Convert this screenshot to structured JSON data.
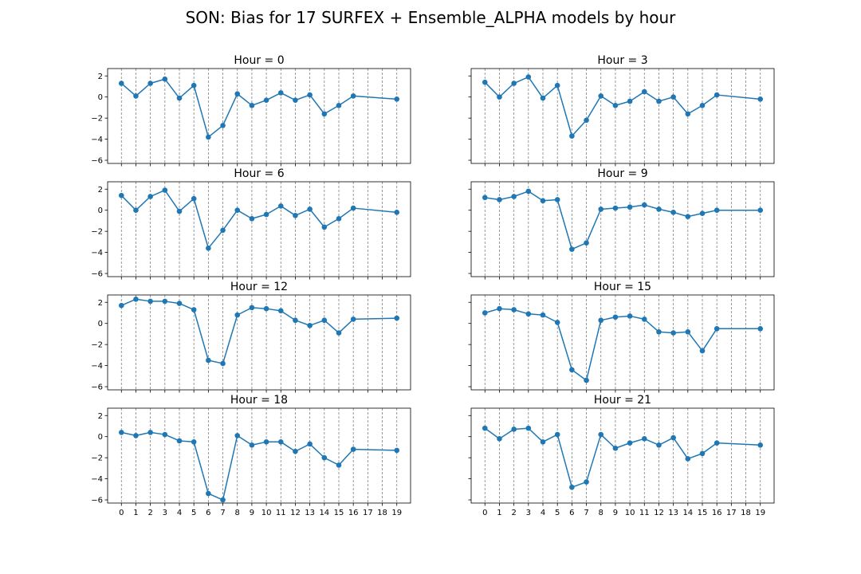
{
  "figure": {
    "title": "SON: Bias for 17 SURFEX + Ensemble_ALPHA models by hour"
  },
  "style": {
    "line_color": "#1f77b4",
    "grid_color": "#808080",
    "axis_color": "#000000"
  },
  "chart_data": [
    {
      "type": "line",
      "title": "Hour = 0",
      "xlabel": "",
      "ylabel": "",
      "x": [
        0,
        1,
        2,
        3,
        4,
        5,
        6,
        7,
        8,
        9,
        10,
        11,
        12,
        13,
        14,
        15,
        16,
        19
      ],
      "series": [
        {
          "values": [
            1.3,
            0.1,
            1.3,
            1.7,
            -0.1,
            1.1,
            -3.8,
            -2.7,
            0.3,
            -0.8,
            -0.3,
            0.4,
            -0.3,
            0.2,
            -1.6,
            -0.8,
            0.1,
            -0.2
          ]
        }
      ],
      "xticks": [
        0,
        1,
        2,
        3,
        4,
        5,
        6,
        7,
        8,
        9,
        10,
        11,
        12,
        13,
        14,
        15,
        16,
        17,
        18,
        19
      ],
      "yticks": [
        -6,
        -4,
        -2,
        0,
        2
      ],
      "ylim": [
        -6.3,
        2.7
      ],
      "xlim": [
        -0.95,
        19.95
      ],
      "grid": "vertical dashed"
    },
    {
      "type": "line",
      "title": "Hour = 3",
      "xlabel": "",
      "ylabel": "",
      "x": [
        0,
        1,
        2,
        3,
        4,
        5,
        6,
        7,
        8,
        9,
        10,
        11,
        12,
        13,
        14,
        15,
        16,
        19
      ],
      "series": [
        {
          "values": [
            1.4,
            0.0,
            1.3,
            1.9,
            -0.1,
            1.1,
            -3.7,
            -2.2,
            0.1,
            -0.8,
            -0.4,
            0.5,
            -0.4,
            0.0,
            -1.6,
            -0.8,
            0.2,
            -0.2
          ]
        }
      ],
      "xticks": [
        0,
        1,
        2,
        3,
        4,
        5,
        6,
        7,
        8,
        9,
        10,
        11,
        12,
        13,
        14,
        15,
        16,
        17,
        18,
        19
      ],
      "yticks": [
        -6,
        -4,
        -2,
        0,
        2
      ],
      "ylim": [
        -6.3,
        2.7
      ],
      "xlim": [
        -0.95,
        19.95
      ],
      "grid": "vertical dashed"
    },
    {
      "type": "line",
      "title": "Hour = 6",
      "xlabel": "",
      "ylabel": "",
      "x": [
        0,
        1,
        2,
        3,
        4,
        5,
        6,
        7,
        8,
        9,
        10,
        11,
        12,
        13,
        14,
        15,
        16,
        19
      ],
      "series": [
        {
          "values": [
            1.4,
            0.0,
            1.3,
            1.9,
            -0.1,
            1.1,
            -3.6,
            -1.9,
            0.0,
            -0.8,
            -0.4,
            0.4,
            -0.5,
            0.1,
            -1.6,
            -0.8,
            0.2,
            -0.2
          ]
        }
      ],
      "xticks": [
        0,
        1,
        2,
        3,
        4,
        5,
        6,
        7,
        8,
        9,
        10,
        11,
        12,
        13,
        14,
        15,
        16,
        17,
        18,
        19
      ],
      "yticks": [
        -6,
        -4,
        -2,
        0,
        2
      ],
      "ylim": [
        -6.3,
        2.7
      ],
      "xlim": [
        -0.95,
        19.95
      ],
      "grid": "vertical dashed"
    },
    {
      "type": "line",
      "title": "Hour = 9",
      "xlabel": "",
      "ylabel": "",
      "x": [
        0,
        1,
        2,
        3,
        4,
        5,
        6,
        7,
        8,
        9,
        10,
        11,
        12,
        13,
        14,
        15,
        16,
        19
      ],
      "series": [
        {
          "values": [
            1.2,
            1.0,
            1.3,
            1.8,
            0.9,
            1.0,
            -3.7,
            -3.1,
            0.1,
            0.2,
            0.3,
            0.5,
            0.1,
            -0.2,
            -0.6,
            -0.3,
            0.0,
            0.0
          ]
        }
      ],
      "xticks": [
        0,
        1,
        2,
        3,
        4,
        5,
        6,
        7,
        8,
        9,
        10,
        11,
        12,
        13,
        14,
        15,
        16,
        17,
        18,
        19
      ],
      "yticks": [
        -6,
        -4,
        -2,
        0,
        2
      ],
      "ylim": [
        -6.3,
        2.7
      ],
      "xlim": [
        -0.95,
        19.95
      ],
      "grid": "vertical dashed"
    },
    {
      "type": "line",
      "title": "Hour = 12",
      "xlabel": "",
      "ylabel": "",
      "x": [
        0,
        1,
        2,
        3,
        4,
        5,
        6,
        7,
        8,
        9,
        10,
        11,
        12,
        13,
        14,
        15,
        16,
        19
      ],
      "series": [
        {
          "values": [
            1.7,
            2.3,
            2.1,
            2.1,
            1.9,
            1.3,
            -3.5,
            -3.8,
            0.8,
            1.5,
            1.4,
            1.2,
            0.3,
            -0.2,
            0.3,
            -0.9,
            0.4,
            0.5
          ]
        }
      ],
      "xticks": [
        0,
        1,
        2,
        3,
        4,
        5,
        6,
        7,
        8,
        9,
        10,
        11,
        12,
        13,
        14,
        15,
        16,
        17,
        18,
        19
      ],
      "yticks": [
        -6,
        -4,
        -2,
        0,
        2
      ],
      "ylim": [
        -6.3,
        2.7
      ],
      "xlim": [
        -0.95,
        19.95
      ],
      "grid": "vertical dashed"
    },
    {
      "type": "line",
      "title": "Hour = 15",
      "xlabel": "",
      "ylabel": "",
      "x": [
        0,
        1,
        2,
        3,
        4,
        5,
        6,
        7,
        8,
        9,
        10,
        11,
        12,
        13,
        14,
        15,
        16,
        19
      ],
      "series": [
        {
          "values": [
            1.0,
            1.4,
            1.3,
            0.9,
            0.8,
            0.1,
            -4.4,
            -5.4,
            0.3,
            0.6,
            0.7,
            0.4,
            -0.8,
            -0.9,
            -0.8,
            -2.6,
            -0.5,
            -0.5
          ]
        }
      ],
      "xticks": [
        0,
        1,
        2,
        3,
        4,
        5,
        6,
        7,
        8,
        9,
        10,
        11,
        12,
        13,
        14,
        15,
        16,
        17,
        18,
        19
      ],
      "yticks": [
        -6,
        -4,
        -2,
        0,
        2
      ],
      "ylim": [
        -6.3,
        2.7
      ],
      "xlim": [
        -0.95,
        19.95
      ],
      "grid": "vertical dashed"
    },
    {
      "type": "line",
      "title": "Hour = 18",
      "xlabel": "",
      "ylabel": "",
      "x": [
        0,
        1,
        2,
        3,
        4,
        5,
        6,
        7,
        8,
        9,
        10,
        11,
        12,
        13,
        14,
        15,
        16,
        19
      ],
      "series": [
        {
          "values": [
            0.4,
            0.1,
            0.4,
            0.2,
            -0.4,
            -0.5,
            -5.4,
            -6.0,
            0.1,
            -0.8,
            -0.5,
            -0.5,
            -1.4,
            -0.7,
            -2.0,
            -2.7,
            -1.2,
            -1.3
          ]
        }
      ],
      "xticks": [
        0,
        1,
        2,
        3,
        4,
        5,
        6,
        7,
        8,
        9,
        10,
        11,
        12,
        13,
        14,
        15,
        16,
        17,
        18,
        19
      ],
      "yticks": [
        -6,
        -4,
        -2,
        0,
        2
      ],
      "ylim": [
        -6.3,
        2.7
      ],
      "xlim": [
        -0.95,
        19.95
      ],
      "grid": "vertical dashed"
    },
    {
      "type": "line",
      "title": "Hour = 21",
      "xlabel": "",
      "ylabel": "",
      "x": [
        0,
        1,
        2,
        3,
        4,
        5,
        6,
        7,
        8,
        9,
        10,
        11,
        12,
        13,
        14,
        15,
        16,
        19
      ],
      "series": [
        {
          "values": [
            0.8,
            -0.2,
            0.7,
            0.8,
            -0.5,
            0.2,
            -4.8,
            -4.3,
            0.2,
            -1.1,
            -0.6,
            -0.2,
            -0.8,
            -0.1,
            -2.1,
            -1.6,
            -0.6,
            -0.8
          ]
        }
      ],
      "xticks": [
        0,
        1,
        2,
        3,
        4,
        5,
        6,
        7,
        8,
        9,
        10,
        11,
        12,
        13,
        14,
        15,
        16,
        17,
        18,
        19
      ],
      "yticks": [
        -6,
        -4,
        -2,
        0,
        2
      ],
      "ylim": [
        -6.3,
        2.7
      ],
      "xlim": [
        -0.95,
        19.95
      ],
      "grid": "vertical dashed"
    }
  ]
}
